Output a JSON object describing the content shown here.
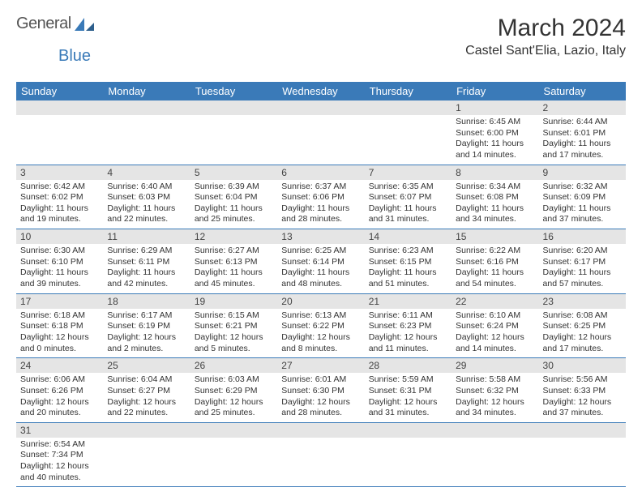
{
  "logo": {
    "text1": "General",
    "text2": "Blue"
  },
  "title": "March 2024",
  "location": "Castel Sant'Elia, Lazio, Italy",
  "colors": {
    "header_bg": "#3a7ab8",
    "header_fg": "#ffffff",
    "daynum_bg": "#e5e5e5",
    "border": "#3a7ab8",
    "page_bg": "#ffffff",
    "text": "#333333"
  },
  "weekdays": [
    "Sunday",
    "Monday",
    "Tuesday",
    "Wednesday",
    "Thursday",
    "Friday",
    "Saturday"
  ],
  "weeks": [
    [
      null,
      null,
      null,
      null,
      null,
      {
        "n": "1",
        "sr": "Sunrise: 6:45 AM",
        "ss": "Sunset: 6:00 PM",
        "dl1": "Daylight: 11 hours",
        "dl2": "and 14 minutes."
      },
      {
        "n": "2",
        "sr": "Sunrise: 6:44 AM",
        "ss": "Sunset: 6:01 PM",
        "dl1": "Daylight: 11 hours",
        "dl2": "and 17 minutes."
      }
    ],
    [
      {
        "n": "3",
        "sr": "Sunrise: 6:42 AM",
        "ss": "Sunset: 6:02 PM",
        "dl1": "Daylight: 11 hours",
        "dl2": "and 19 minutes."
      },
      {
        "n": "4",
        "sr": "Sunrise: 6:40 AM",
        "ss": "Sunset: 6:03 PM",
        "dl1": "Daylight: 11 hours",
        "dl2": "and 22 minutes."
      },
      {
        "n": "5",
        "sr": "Sunrise: 6:39 AM",
        "ss": "Sunset: 6:04 PM",
        "dl1": "Daylight: 11 hours",
        "dl2": "and 25 minutes."
      },
      {
        "n": "6",
        "sr": "Sunrise: 6:37 AM",
        "ss": "Sunset: 6:06 PM",
        "dl1": "Daylight: 11 hours",
        "dl2": "and 28 minutes."
      },
      {
        "n": "7",
        "sr": "Sunrise: 6:35 AM",
        "ss": "Sunset: 6:07 PM",
        "dl1": "Daylight: 11 hours",
        "dl2": "and 31 minutes."
      },
      {
        "n": "8",
        "sr": "Sunrise: 6:34 AM",
        "ss": "Sunset: 6:08 PM",
        "dl1": "Daylight: 11 hours",
        "dl2": "and 34 minutes."
      },
      {
        "n": "9",
        "sr": "Sunrise: 6:32 AM",
        "ss": "Sunset: 6:09 PM",
        "dl1": "Daylight: 11 hours",
        "dl2": "and 37 minutes."
      }
    ],
    [
      {
        "n": "10",
        "sr": "Sunrise: 6:30 AM",
        "ss": "Sunset: 6:10 PM",
        "dl1": "Daylight: 11 hours",
        "dl2": "and 39 minutes."
      },
      {
        "n": "11",
        "sr": "Sunrise: 6:29 AM",
        "ss": "Sunset: 6:11 PM",
        "dl1": "Daylight: 11 hours",
        "dl2": "and 42 minutes."
      },
      {
        "n": "12",
        "sr": "Sunrise: 6:27 AM",
        "ss": "Sunset: 6:13 PM",
        "dl1": "Daylight: 11 hours",
        "dl2": "and 45 minutes."
      },
      {
        "n": "13",
        "sr": "Sunrise: 6:25 AM",
        "ss": "Sunset: 6:14 PM",
        "dl1": "Daylight: 11 hours",
        "dl2": "and 48 minutes."
      },
      {
        "n": "14",
        "sr": "Sunrise: 6:23 AM",
        "ss": "Sunset: 6:15 PM",
        "dl1": "Daylight: 11 hours",
        "dl2": "and 51 minutes."
      },
      {
        "n": "15",
        "sr": "Sunrise: 6:22 AM",
        "ss": "Sunset: 6:16 PM",
        "dl1": "Daylight: 11 hours",
        "dl2": "and 54 minutes."
      },
      {
        "n": "16",
        "sr": "Sunrise: 6:20 AM",
        "ss": "Sunset: 6:17 PM",
        "dl1": "Daylight: 11 hours",
        "dl2": "and 57 minutes."
      }
    ],
    [
      {
        "n": "17",
        "sr": "Sunrise: 6:18 AM",
        "ss": "Sunset: 6:18 PM",
        "dl1": "Daylight: 12 hours",
        "dl2": "and 0 minutes."
      },
      {
        "n": "18",
        "sr": "Sunrise: 6:17 AM",
        "ss": "Sunset: 6:19 PM",
        "dl1": "Daylight: 12 hours",
        "dl2": "and 2 minutes."
      },
      {
        "n": "19",
        "sr": "Sunrise: 6:15 AM",
        "ss": "Sunset: 6:21 PM",
        "dl1": "Daylight: 12 hours",
        "dl2": "and 5 minutes."
      },
      {
        "n": "20",
        "sr": "Sunrise: 6:13 AM",
        "ss": "Sunset: 6:22 PM",
        "dl1": "Daylight: 12 hours",
        "dl2": "and 8 minutes."
      },
      {
        "n": "21",
        "sr": "Sunrise: 6:11 AM",
        "ss": "Sunset: 6:23 PM",
        "dl1": "Daylight: 12 hours",
        "dl2": "and 11 minutes."
      },
      {
        "n": "22",
        "sr": "Sunrise: 6:10 AM",
        "ss": "Sunset: 6:24 PM",
        "dl1": "Daylight: 12 hours",
        "dl2": "and 14 minutes."
      },
      {
        "n": "23",
        "sr": "Sunrise: 6:08 AM",
        "ss": "Sunset: 6:25 PM",
        "dl1": "Daylight: 12 hours",
        "dl2": "and 17 minutes."
      }
    ],
    [
      {
        "n": "24",
        "sr": "Sunrise: 6:06 AM",
        "ss": "Sunset: 6:26 PM",
        "dl1": "Daylight: 12 hours",
        "dl2": "and 20 minutes."
      },
      {
        "n": "25",
        "sr": "Sunrise: 6:04 AM",
        "ss": "Sunset: 6:27 PM",
        "dl1": "Daylight: 12 hours",
        "dl2": "and 22 minutes."
      },
      {
        "n": "26",
        "sr": "Sunrise: 6:03 AM",
        "ss": "Sunset: 6:29 PM",
        "dl1": "Daylight: 12 hours",
        "dl2": "and 25 minutes."
      },
      {
        "n": "27",
        "sr": "Sunrise: 6:01 AM",
        "ss": "Sunset: 6:30 PM",
        "dl1": "Daylight: 12 hours",
        "dl2": "and 28 minutes."
      },
      {
        "n": "28",
        "sr": "Sunrise: 5:59 AM",
        "ss": "Sunset: 6:31 PM",
        "dl1": "Daylight: 12 hours",
        "dl2": "and 31 minutes."
      },
      {
        "n": "29",
        "sr": "Sunrise: 5:58 AM",
        "ss": "Sunset: 6:32 PM",
        "dl1": "Daylight: 12 hours",
        "dl2": "and 34 minutes."
      },
      {
        "n": "30",
        "sr": "Sunrise: 5:56 AM",
        "ss": "Sunset: 6:33 PM",
        "dl1": "Daylight: 12 hours",
        "dl2": "and 37 minutes."
      }
    ],
    [
      {
        "n": "31",
        "sr": "Sunrise: 6:54 AM",
        "ss": "Sunset: 7:34 PM",
        "dl1": "Daylight: 12 hours",
        "dl2": "and 40 minutes."
      },
      null,
      null,
      null,
      null,
      null,
      null
    ]
  ]
}
